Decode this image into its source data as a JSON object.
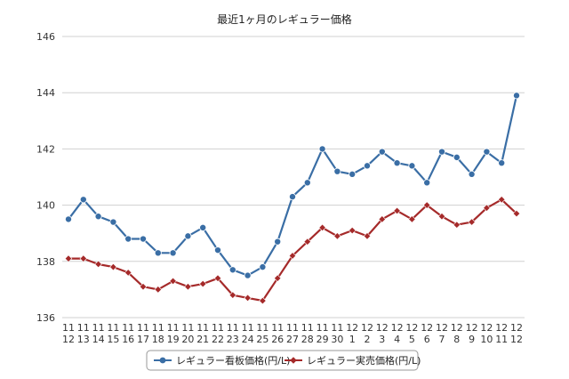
{
  "chart_data": {
    "type": "line",
    "title": "最近1ヶ月のレギュラー価格",
    "xlabel": "",
    "ylabel": "",
    "categories": [
      [
        "11",
        "12"
      ],
      [
        "11",
        "13"
      ],
      [
        "11",
        "14"
      ],
      [
        "11",
        "15"
      ],
      [
        "11",
        "16"
      ],
      [
        "11",
        "17"
      ],
      [
        "11",
        "18"
      ],
      [
        "11",
        "19"
      ],
      [
        "11",
        "20"
      ],
      [
        "11",
        "21"
      ],
      [
        "11",
        "22"
      ],
      [
        "11",
        "23"
      ],
      [
        "11",
        "24"
      ],
      [
        "11",
        "25"
      ],
      [
        "11",
        "26"
      ],
      [
        "11",
        "27"
      ],
      [
        "11",
        "28"
      ],
      [
        "11",
        "29"
      ],
      [
        "11",
        "30"
      ],
      [
        "12",
        "1"
      ],
      [
        "12",
        "2"
      ],
      [
        "12",
        "3"
      ],
      [
        "12",
        "4"
      ],
      [
        "12",
        "5"
      ],
      [
        "12",
        "6"
      ],
      [
        "12",
        "7"
      ],
      [
        "12",
        "8"
      ],
      [
        "12",
        "9"
      ],
      [
        "12",
        "10"
      ],
      [
        "12",
        "11"
      ],
      [
        "12",
        "12"
      ]
    ],
    "ylim": [
      136,
      146
    ],
    "yticks": [
      136,
      138,
      140,
      142,
      144,
      146
    ],
    "grid": true,
    "legend_position": "bottom",
    "series": [
      {
        "name": "レギュラー看板価格(円/L)",
        "color": "#3a6ea5",
        "marker": "circle",
        "values": [
          139.5,
          140.2,
          139.6,
          139.4,
          138.8,
          138.8,
          138.3,
          138.3,
          138.9,
          139.2,
          138.4,
          137.7,
          137.5,
          137.8,
          138.7,
          140.3,
          140.8,
          142.0,
          141.2,
          141.1,
          141.4,
          141.9,
          141.5,
          141.4,
          140.8,
          141.9,
          141.7,
          141.1,
          141.9,
          141.5,
          143.9
        ]
      },
      {
        "name": "レギュラー実売価格(円/L)",
        "color": "#a52a2a",
        "marker": "diamond",
        "values": [
          138.1,
          138.1,
          137.9,
          137.8,
          137.6,
          137.1,
          137.0,
          137.3,
          137.1,
          137.2,
          137.4,
          136.8,
          136.7,
          136.6,
          137.4,
          138.2,
          138.7,
          139.2,
          138.9,
          139.1,
          138.9,
          139.5,
          139.8,
          139.5,
          140.0,
          139.6,
          139.3,
          139.4,
          139.9,
          140.2,
          139.7
        ]
      }
    ]
  }
}
